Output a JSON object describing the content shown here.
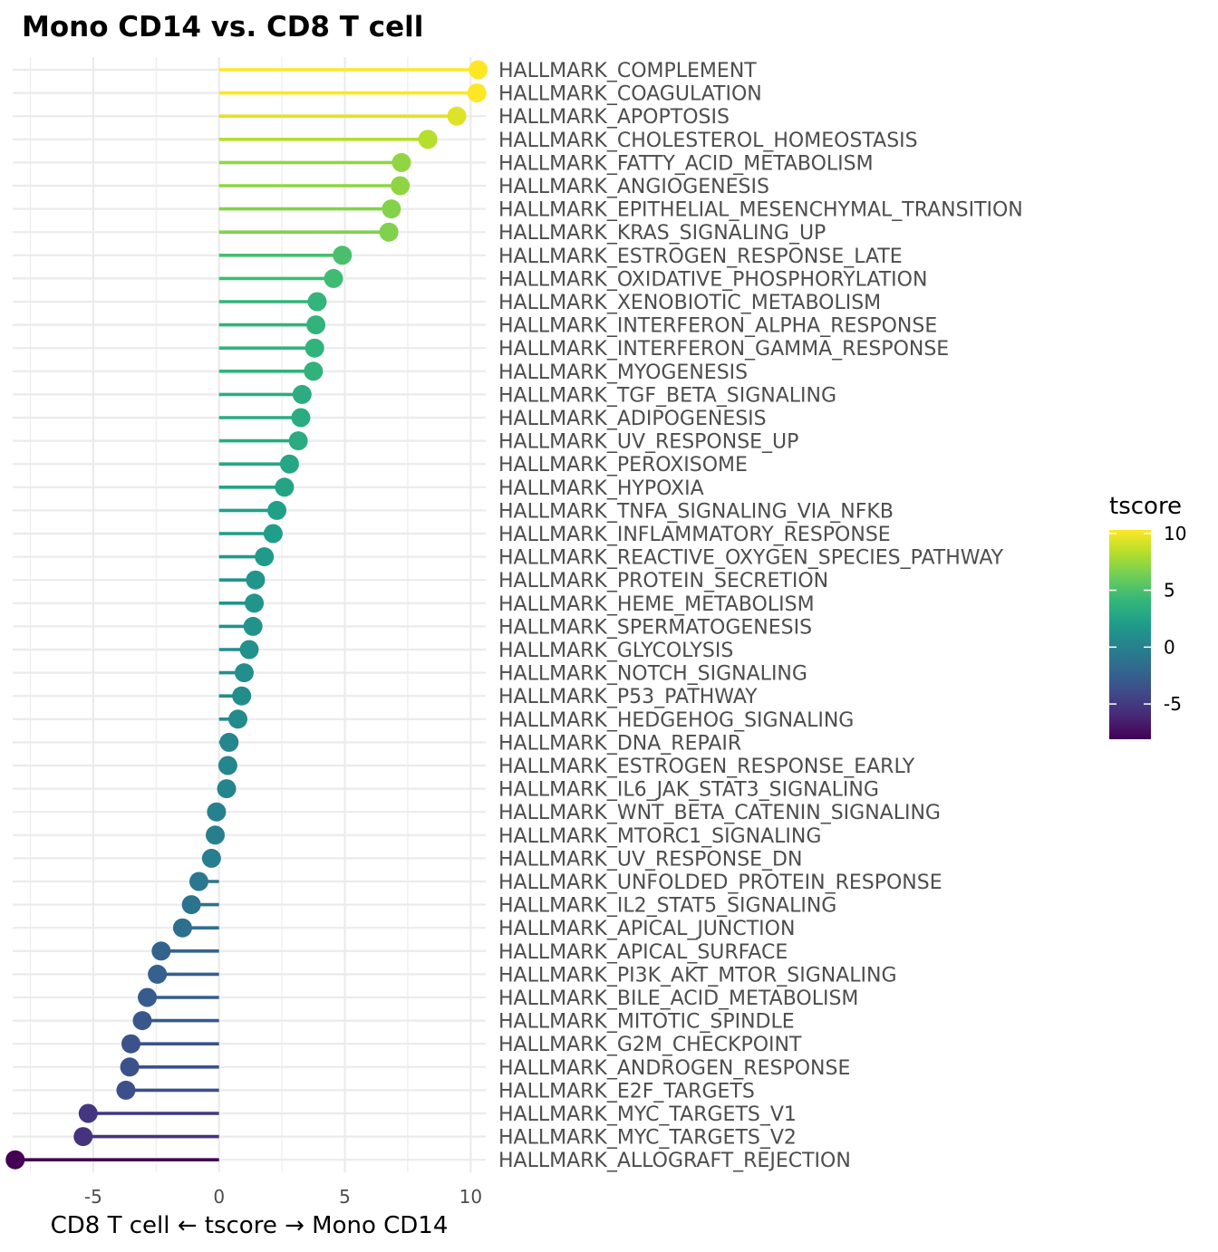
{
  "chart_data": {
    "type": "lollipop",
    "title": "Mono CD14 vs. CD8 T cell",
    "xlabel": "CD8 T cell ← tscore → Mono CD14",
    "ylabel": "",
    "xlim": [
      -8.2,
      10.6
    ],
    "xticks": [
      -5,
      0,
      5,
      10
    ],
    "xtick_labels": [
      "-5",
      "0",
      "5",
      "10"
    ],
    "grid": true,
    "colorbar": {
      "title": "tscore",
      "colormap": "viridis",
      "range": [
        -8.1,
        10.3
      ],
      "ticks": [
        10,
        5,
        0,
        -5
      ],
      "tick_labels": [
        "10",
        "5",
        "0",
        "-5"
      ]
    },
    "categories": [
      "HALLMARK_COMPLEMENT",
      "HALLMARK_COAGULATION",
      "HALLMARK_APOPTOSIS",
      "HALLMARK_CHOLESTEROL_HOMEOSTASIS",
      "HALLMARK_FATTY_ACID_METABOLISM",
      "HALLMARK_ANGIOGENESIS",
      "HALLMARK_EPITHELIAL_MESENCHYMAL_TRANSITION",
      "HALLMARK_KRAS_SIGNALING_UP",
      "HALLMARK_ESTROGEN_RESPONSE_LATE",
      "HALLMARK_OXIDATIVE_PHOSPHORYLATION",
      "HALLMARK_XENOBIOTIC_METABOLISM",
      "HALLMARK_INTERFERON_ALPHA_RESPONSE",
      "HALLMARK_INTERFERON_GAMMA_RESPONSE",
      "HALLMARK_MYOGENESIS",
      "HALLMARK_TGF_BETA_SIGNALING",
      "HALLMARK_ADIPOGENESIS",
      "HALLMARK_UV_RESPONSE_UP",
      "HALLMARK_PEROXISOME",
      "HALLMARK_HYPOXIA",
      "HALLMARK_TNFA_SIGNALING_VIA_NFKB",
      "HALLMARK_INFLAMMATORY_RESPONSE",
      "HALLMARK_REACTIVE_OXYGEN_SPECIES_PATHWAY",
      "HALLMARK_PROTEIN_SECRETION",
      "HALLMARK_HEME_METABOLISM",
      "HALLMARK_SPERMATOGENESIS",
      "HALLMARK_GLYCOLYSIS",
      "HALLMARK_NOTCH_SIGNALING",
      "HALLMARK_P53_PATHWAY",
      "HALLMARK_HEDGEHOG_SIGNALING",
      "HALLMARK_DNA_REPAIR",
      "HALLMARK_ESTROGEN_RESPONSE_EARLY",
      "HALLMARK_IL6_JAK_STAT3_SIGNALING",
      "HALLMARK_WNT_BETA_CATENIN_SIGNALING",
      "HALLMARK_MTORC1_SIGNALING",
      "HALLMARK_UV_RESPONSE_DN",
      "HALLMARK_UNFOLDED_PROTEIN_RESPONSE",
      "HALLMARK_IL2_STAT5_SIGNALING",
      "HALLMARK_APICAL_JUNCTION",
      "HALLMARK_APICAL_SURFACE",
      "HALLMARK_PI3K_AKT_MTOR_SIGNALING",
      "HALLMARK_BILE_ACID_METABOLISM",
      "HALLMARK_MITOTIC_SPINDLE",
      "HALLMARK_G2M_CHECKPOINT",
      "HALLMARK_ANDROGEN_RESPONSE",
      "HALLMARK_E2F_TARGETS",
      "HALLMARK_MYC_TARGETS_V1",
      "HALLMARK_MYC_TARGETS_V2",
      "HALLMARK_ALLOGRAFT_REJECTION"
    ],
    "values": [
      10.3,
      10.25,
      9.45,
      8.3,
      7.25,
      7.2,
      6.85,
      6.75,
      4.9,
      4.55,
      3.9,
      3.85,
      3.8,
      3.75,
      3.3,
      3.25,
      3.15,
      2.8,
      2.6,
      2.3,
      2.15,
      1.8,
      1.45,
      1.4,
      1.35,
      1.2,
      1.0,
      0.9,
      0.75,
      0.4,
      0.35,
      0.3,
      -0.1,
      -0.15,
      -0.3,
      -0.8,
      -1.1,
      -1.45,
      -2.3,
      -2.45,
      -2.85,
      -3.05,
      -3.5,
      -3.55,
      -3.7,
      -5.2,
      -5.4,
      -8.1
    ]
  }
}
